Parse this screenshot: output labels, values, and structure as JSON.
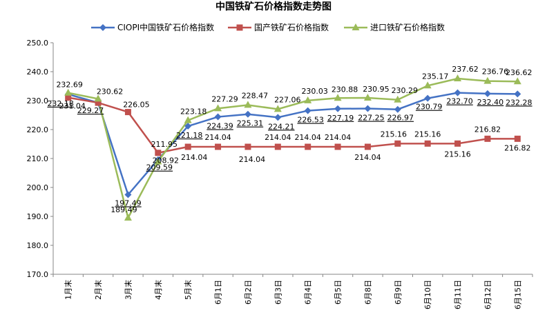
{
  "chart_data": {
    "type": "line",
    "title": "中国铁矿石价格指数走势图",
    "xlabel": "",
    "ylabel": "",
    "ylim": [
      170,
      250
    ],
    "yticks": [
      "170.0",
      "180.0",
      "190.0",
      "200.0",
      "210.0",
      "220.0",
      "230.0",
      "240.0",
      "250.0"
    ],
    "grid": false,
    "legend_position": "top",
    "categories": [
      "1月末",
      "2月末",
      "3月末",
      "4月末",
      "5月末",
      "6月1日",
      "6月2日",
      "6月3日",
      "6月4日",
      "6月5日",
      "6月8日",
      "6月9日",
      "6月10日",
      "6月11日",
      "6月12日",
      "6月15日"
    ],
    "series": [
      {
        "name": "CIOPI中国铁矿石价格指数",
        "color": "#4472C4",
        "marker": "diamond",
        "values": [
          232.18,
          229.27,
          197.49,
          209.59,
          221.18,
          224.39,
          225.31,
          224.21,
          226.53,
          227.19,
          227.25,
          226.97,
          230.79,
          232.7,
          232.4,
          232.28
        ],
        "labels": [
          "232.18",
          "229.27",
          "197.49",
          "209.59",
          "221.18",
          "224.39",
          "225.31",
          "224.21",
          "226.53",
          "227.19",
          "227.25",
          "226.97",
          "230.79",
          "232.70",
          "232.40",
          "232.28"
        ]
      },
      {
        "name": "国产铁矿石价格指数",
        "color": "#C0504D",
        "marker": "square",
        "values": [
          231.04,
          229.27,
          226.05,
          211.95,
          214.04,
          214.04,
          214.04,
          214.04,
          214.04,
          214.04,
          214.04,
          215.16,
          215.16,
          215.16,
          216.82,
          216.82
        ],
        "labels": [
          "231.04",
          "",
          "226.05",
          "211.95",
          "214.04",
          "214.04",
          "214.04",
          "214.04",
          "214.04",
          "214.04",
          "214.04",
          "215.16",
          "215.16",
          "215.16",
          "216.82",
          "216.82"
        ]
      },
      {
        "name": "进口铁矿石价格指数",
        "color": "#9BBB59",
        "marker": "triangle",
        "values": [
          232.69,
          230.62,
          189.49,
          208.92,
          223.18,
          227.29,
          228.47,
          227.06,
          230.03,
          230.88,
          230.95,
          230.29,
          235.17,
          237.62,
          236.76,
          236.62
        ],
        "labels": [
          "232.69",
          "230.62",
          "189.49",
          "208.92",
          "223.18",
          "227.29",
          "228.47",
          "227.06",
          "230.03",
          "230.88",
          "230.95",
          "230.29",
          "235.17",
          "237.62",
          "236.76",
          "236.62"
        ]
      }
    ]
  }
}
